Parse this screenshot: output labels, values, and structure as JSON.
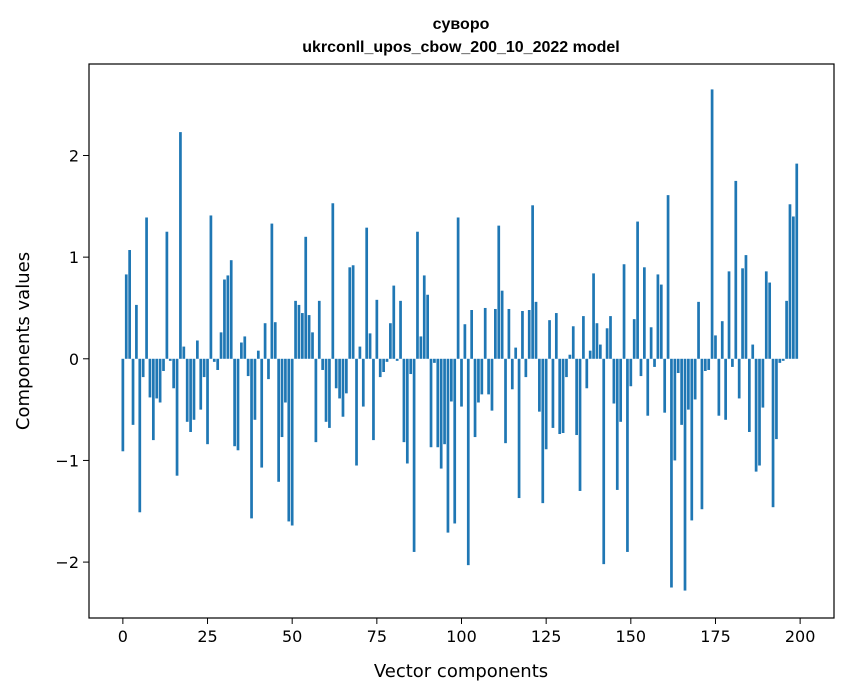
{
  "chart_data": {
    "type": "bar",
    "title": "суворо",
    "subtitle": "ukrconll_upos_cbow_200_10_2022 model",
    "xlabel": "Vector components",
    "ylabel": "Components values",
    "xlim": [
      -10,
      210
    ],
    "ylim": [
      -2.55,
      2.9
    ],
    "xticks": [
      0,
      25,
      50,
      75,
      100,
      125,
      150,
      175,
      200
    ],
    "yticks": [
      -2,
      -1,
      0,
      1,
      2
    ],
    "ytick_labels": [
      "−2",
      "−1",
      "0",
      "1",
      "2"
    ],
    "bar_color": "#1f77b4",
    "grid": false,
    "legend": "none",
    "values": [
      -0.91,
      0.83,
      1.07,
      -0.65,
      0.53,
      -1.51,
      -0.18,
      1.39,
      -0.38,
      -0.8,
      -0.39,
      -0.43,
      -0.12,
      1.25,
      -0.02,
      -0.29,
      -1.15,
      2.23,
      0.12,
      -0.62,
      -0.72,
      -0.6,
      0.18,
      -0.5,
      -0.18,
      -0.84,
      1.41,
      -0.03,
      -0.11,
      0.26,
      0.78,
      0.82,
      0.97,
      -0.86,
      -0.9,
      0.16,
      0.22,
      -0.17,
      -1.57,
      -0.6,
      0.08,
      -1.07,
      0.35,
      -0.2,
      1.33,
      0.36,
      -1.21,
      -0.77,
      -0.43,
      -1.6,
      -1.64,
      0.57,
      0.53,
      0.45,
      1.2,
      0.43,
      0.26,
      -0.82,
      0.57,
      -0.11,
      -0.62,
      -0.68,
      1.53,
      -0.29,
      -0.39,
      -0.57,
      -0.34,
      0.9,
      0.92,
      -1.05,
      0.12,
      -0.47,
      1.29,
      0.25,
      -0.8,
      0.58,
      -0.18,
      -0.13,
      -0.03,
      0.35,
      0.72,
      -0.02,
      0.57,
      -0.82,
      -1.03,
      -0.15,
      -1.9,
      1.25,
      0.22,
      0.82,
      0.63,
      -0.87,
      -0.04,
      -0.87,
      -1.08,
      -0.84,
      -1.71,
      -0.42,
      -1.62,
      1.39,
      -0.47,
      0.34,
      -2.03,
      0.48,
      -0.77,
      -0.43,
      -0.35,
      0.5,
      -0.35,
      -0.51,
      0.49,
      1.31,
      0.67,
      -0.83,
      0.49,
      -0.3,
      0.11,
      -1.37,
      0.47,
      -0.18,
      0.48,
      1.51,
      0.56,
      -0.52,
      -1.42,
      -0.89,
      0.38,
      -0.68,
      0.45,
      -0.74,
      -0.73,
      -0.18,
      0.04,
      0.32,
      -0.75,
      -1.3,
      0.42,
      -0.29,
      0.08,
      0.84,
      0.35,
      0.14,
      -2.02,
      0.3,
      0.42,
      -0.44,
      -1.29,
      -0.62,
      0.93,
      -1.9,
      -0.27,
      0.39,
      1.35,
      -0.17,
      0.9,
      -0.56,
      0.31,
      -0.08,
      0.83,
      0.73,
      -0.53,
      1.61,
      -2.25,
      -1.0,
      -0.14,
      -0.65,
      -2.28,
      -0.5,
      -1.59,
      -0.4,
      0.56,
      -1.48,
      -0.12,
      -0.11,
      2.65,
      0.23,
      -0.56,
      0.37,
      -0.6,
      0.86,
      -0.08,
      1.75,
      -0.39,
      0.89,
      1.02,
      -0.72,
      0.14,
      -1.11,
      -1.05,
      -0.48,
      0.86,
      0.75,
      -1.46,
      -0.79,
      -0.04,
      -0.02,
      0.57,
      1.52,
      1.4,
      1.92
    ]
  }
}
